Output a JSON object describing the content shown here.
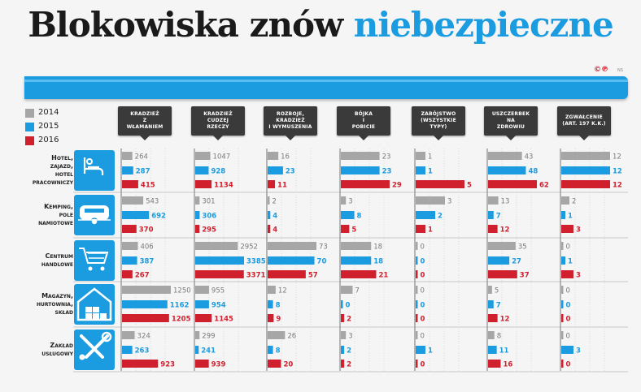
{
  "title": {
    "main": "Blokowiska znów",
    "accent": "niebezpieczne"
  },
  "credit": {
    "mark": "©℗",
    "text": "NS"
  },
  "colors": {
    "2014": "#a6a6a6",
    "2015": "#1b9ce0",
    "2016": "#d0202e",
    "accent": "#1b9ce0",
    "header": "#3a3a3a"
  },
  "legend": [
    {
      "label": "2014",
      "color": "#a6a6a6"
    },
    {
      "label": "2015",
      "color": "#1b9ce0"
    },
    {
      "label": "2016",
      "color": "#d0202e"
    }
  ],
  "chart_data": {
    "type": "bar",
    "orientation": "horizontal",
    "layout": "small-multiples grid",
    "years": [
      "2014",
      "2015",
      "2016"
    ],
    "columns": [
      "Kradzież z włamaniem",
      "Kradzież cudzej rzeczy",
      "Rozboje, kradzież i wymuszenia",
      "Bójka i pobicie",
      "Zabójstwo (wszystkie typy)",
      "Uszczerbek na zdrowiu",
      "Zgwałcenie (art. 197 k.k.)"
    ],
    "column_labels": [
      "Kradzież\nz\nwłamaniem",
      "Kradzież\ncudzej\nrzeczy",
      "Rozboje,\nkradzież\ni wymuszenia",
      "Bójka\ni\npobicie",
      "Zabójstwo\n(wszystkie\ntypy)",
      "Uszczerbek\nna\nzdrowiu",
      "Zgwałcenie\n(art. 197 k.k.)"
    ],
    "rows": [
      {
        "label": "Hotel, zajazd, hotel pracowniczy",
        "display_label": "Hotel,\nzajazd,\nhotel\npracowniczy",
        "icon": "bed-icon",
        "values": [
          [
            264,
            287,
            415
          ],
          [
            1047,
            928,
            1134
          ],
          [
            16,
            23,
            11
          ],
          [
            23,
            23,
            29
          ],
          [
            1,
            1,
            5
          ],
          [
            43,
            48,
            62
          ],
          [
            12,
            12,
            12
          ]
        ]
      },
      {
        "label": "Kemping, pole namiotowe",
        "display_label": "Kemping,\npole\nnamiotowe",
        "icon": "caravan-icon",
        "values": [
          [
            543,
            692,
            370
          ],
          [
            301,
            306,
            295
          ],
          [
            2,
            4,
            4
          ],
          [
            3,
            8,
            5
          ],
          [
            3,
            2,
            1
          ],
          [
            13,
            7,
            12
          ],
          [
            2,
            1,
            3
          ]
        ]
      },
      {
        "label": "Centrum handlowe",
        "display_label": "Centrum\nhandlowe",
        "icon": "shopping-cart-icon",
        "values": [
          [
            406,
            387,
            267
          ],
          [
            2952,
            3385,
            3371
          ],
          [
            73,
            70,
            57
          ],
          [
            18,
            18,
            21
          ],
          [
            0,
            0,
            0
          ],
          [
            35,
            27,
            37
          ],
          [
            0,
            1,
            3
          ]
        ]
      },
      {
        "label": "Magazyn, hurtownia, skład",
        "display_label": "Magazyn,\nhurtownia,\nskład",
        "icon": "warehouse-icon",
        "values": [
          [
            1250,
            1162,
            1205
          ],
          [
            955,
            954,
            1145
          ],
          [
            12,
            8,
            9
          ],
          [
            7,
            0,
            2
          ],
          [
            0,
            0,
            0
          ],
          [
            5,
            7,
            12
          ],
          [
            0,
            0,
            0
          ]
        ]
      },
      {
        "label": "Zakład usługowy",
        "display_label": "Zakład\nusługowy",
        "icon": "tools-icon",
        "values": [
          [
            324,
            263,
            923
          ],
          [
            299,
            241,
            939
          ],
          [
            26,
            8,
            20
          ],
          [
            3,
            2,
            2
          ],
          [
            0,
            1,
            0
          ],
          [
            8,
            11,
            16
          ],
          [
            0,
            3,
            0
          ]
        ]
      }
    ],
    "column_max": [
      1250,
      3385,
      73,
      29,
      5,
      62,
      12
    ]
  }
}
